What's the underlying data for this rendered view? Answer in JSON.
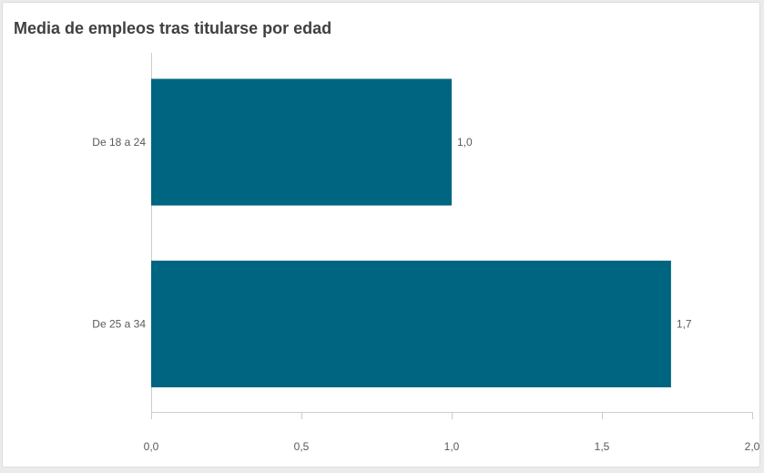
{
  "chart_data": {
    "type": "bar",
    "orientation": "horizontal",
    "title": "Media de empleos tras titularse por edad",
    "categories": [
      "De 18 a 24",
      "De 25 a 34"
    ],
    "values": [
      1.0,
      1.73
    ],
    "value_labels": [
      "1,0",
      "1,7"
    ],
    "xlim": [
      0,
      2
    ],
    "x_ticks": [
      0,
      0.5,
      1,
      1.5,
      2
    ],
    "x_tick_labels": [
      "0,0",
      "0,5",
      "1,0",
      "1,5",
      "2,0"
    ],
    "grid": false,
    "legend": "none"
  },
  "colors": {
    "bar": "#006580",
    "axis": "#cccccc",
    "text": "#595959",
    "title": "#404040"
  }
}
